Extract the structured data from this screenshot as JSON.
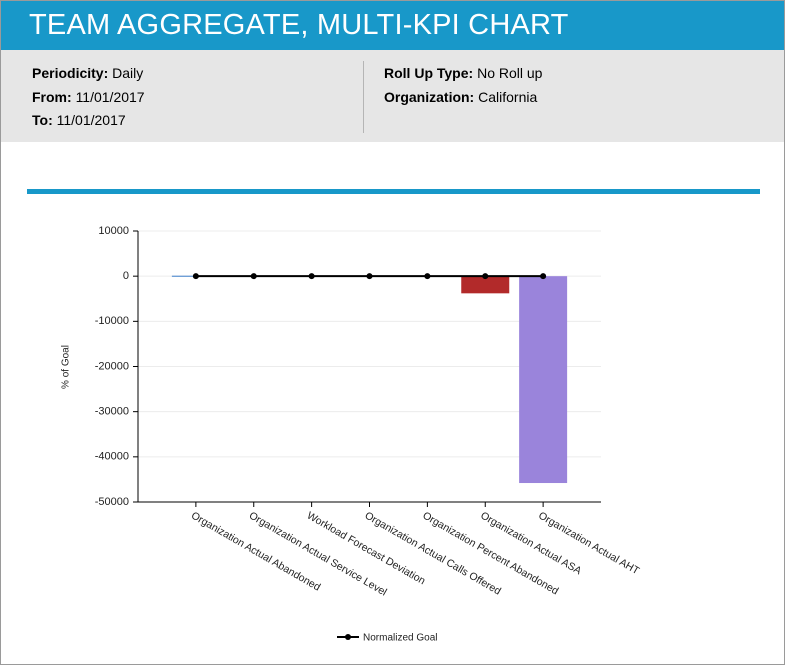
{
  "header": {
    "title": "TEAM AGGREGATE, MULTI-KPI CHART"
  },
  "info": {
    "left": [
      [
        "Periodicity:",
        "Daily"
      ],
      [
        "From:",
        "11/01/2017"
      ],
      [
        "To:",
        "11/01/2017"
      ]
    ],
    "right": [
      [
        "Roll Up Type:",
        "No Roll up"
      ],
      [
        "Organization:",
        "California"
      ]
    ]
  },
  "chart_data": {
    "type": "bar",
    "y_label": "% of Goal",
    "categories": [
      "Organization Actual Abandoned",
      "Organization Actual Service Level",
      "Workload Forecast Deviation",
      "Organization Actual Calls Offered",
      "Organization Percent Abandoned",
      "Organization Actual ASA",
      "Organization Actual AHT"
    ],
    "values": [
      100,
      100,
      100,
      100,
      100,
      -3800,
      -45800
    ],
    "colors": [
      "#3a7dc9",
      "#3a7dc9",
      "#3a7dc9",
      "#3a7dc9",
      "#3a7dc9",
      "#b22a2a",
      "#9a84db"
    ],
    "line_series": {
      "name": "Normalized Goal",
      "color": "#000000",
      "values": [
        0,
        0,
        0,
        0,
        0,
        0,
        0
      ]
    },
    "ylim": [
      -50000,
      10000
    ],
    "yticks": [
      10000,
      0,
      -10000,
      -20000,
      -30000,
      -40000,
      -50000
    ],
    "grid": true
  }
}
